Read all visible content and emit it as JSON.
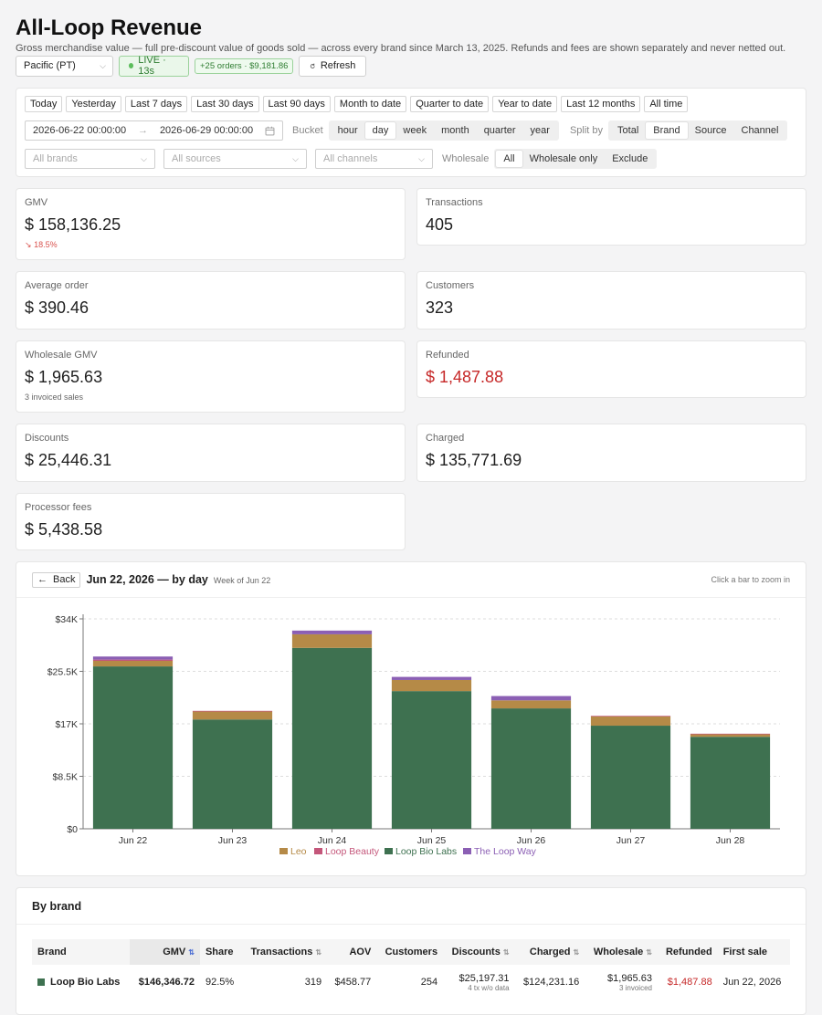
{
  "header": {
    "title": "All-Loop Revenue",
    "subtitle": "Gross merchandise value — full pre-discount value of goods sold — across every brand since March 13, 2025. Refunds and fees are shown separately and never netted out.",
    "timezone": "Pacific (PT)",
    "live_label": "LIVE · 13s",
    "orders_badge": "+25 orders · $9,181.86",
    "refresh_label": "Refresh"
  },
  "filters": {
    "presets": [
      "Today",
      "Yesterday",
      "Last 7 days",
      "Last 30 days",
      "Last 90 days",
      "Month to date",
      "Quarter to date",
      "Year to date",
      "Last 12 months",
      "All time"
    ],
    "date_from": "2026-06-22 00:00:00",
    "date_arrow": "→",
    "date_to": "2026-06-29 00:00:00",
    "bucket_label": "Bucket",
    "buckets": [
      "hour",
      "day",
      "week",
      "month",
      "quarter",
      "year"
    ],
    "bucket_active": "day",
    "split_label": "Split by",
    "splits": [
      "Total",
      "Brand",
      "Source",
      "Channel"
    ],
    "split_active": "Brand",
    "brands_placeholder": "All brands",
    "sources_placeholder": "All sources",
    "channels_placeholder": "All channels",
    "wholesale_label": "Wholesale",
    "wholesale_options": [
      "All",
      "Wholesale only",
      "Exclude"
    ],
    "wholesale_active": "All"
  },
  "stats": {
    "gmv": {
      "label": "GMV",
      "value": "$ 158,136.25",
      "delta": "18.5%"
    },
    "transactions": {
      "label": "Transactions",
      "value": "405"
    },
    "avg_order": {
      "label": "Average order",
      "value": "$ 390.46"
    },
    "customers": {
      "label": "Customers",
      "value": "323"
    },
    "wholesale": {
      "label": "Wholesale GMV",
      "value": "$ 1,965.63",
      "sub": "3 invoiced sales"
    },
    "refunded": {
      "label": "Refunded",
      "value": "$ 1,487.88"
    },
    "discounts": {
      "label": "Discounts",
      "value": "$ 25,446.31"
    },
    "charged": {
      "label": "Charged",
      "value": "$ 135,771.69"
    },
    "fees": {
      "label": "Processor fees",
      "value": "$ 5,438.58"
    }
  },
  "chart": {
    "back_label": "Back",
    "title": "Jun 22, 2026 — by day",
    "week_label": "Week of Jun 22",
    "hint": "Click a bar to zoom in"
  },
  "chart_data": {
    "type": "bar",
    "stacked": true,
    "categories": [
      "Jun 22",
      "Jun 23",
      "Jun 24",
      "Jun 25",
      "Jun 26",
      "Jun 27",
      "Jun 28"
    ],
    "y_ticks": [
      "$0",
      "$8.5K",
      "$17K",
      "$25.5K",
      "$34K"
    ],
    "ylim": [
      0,
      34000
    ],
    "grid": true,
    "legend_position": "bottom",
    "series": [
      {
        "name": "Loop Bio Labs",
        "color": "#3e7150",
        "values": [
          26300,
          17700,
          29300,
          22300,
          19500,
          16700,
          14900
        ]
      },
      {
        "name": "Leo",
        "color": "#b58a47",
        "values": [
          900,
          1300,
          2200,
          1800,
          1300,
          1500,
          400
        ]
      },
      {
        "name": "Loop Beauty",
        "color": "#c4567a",
        "values": [
          200,
          100,
          0,
          0,
          0,
          100,
          100
        ]
      },
      {
        "name": "The Loop Way",
        "color": "#8b5fb4",
        "values": [
          500,
          0,
          600,
          500,
          700,
          0,
          0
        ]
      }
    ],
    "legend_order": [
      "Leo",
      "Loop Beauty",
      "Loop Bio Labs",
      "The Loop Way"
    ]
  },
  "brand_table": {
    "title": "By brand",
    "columns": [
      "Brand",
      "GMV",
      "Share",
      "Transactions",
      "AOV",
      "Customers",
      "Discounts",
      "Charged",
      "Wholesale",
      "Refunded",
      "First sale"
    ],
    "rows": [
      {
        "brand": "Loop Bio Labs",
        "color": "#3e7150",
        "gmv": "$146,346.72",
        "share": "92.5%",
        "transactions": "319",
        "aov": "$458.77",
        "customers": "254",
        "discounts": "$25,197.31",
        "discounts_note": "4 tx w/o data",
        "charged": "$124,231.16",
        "wholesale": "$1,965.63",
        "wholesale_note": "3 invoiced",
        "refunded": "$1,487.88",
        "first_sale": "Jun 22, 2026"
      }
    ]
  }
}
